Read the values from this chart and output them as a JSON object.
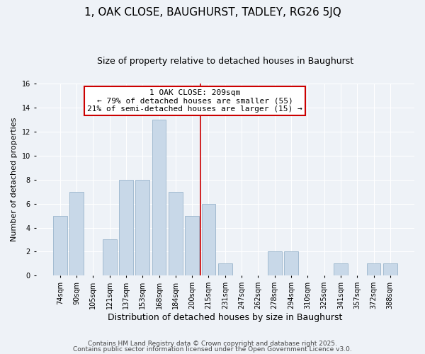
{
  "title": "1, OAK CLOSE, BAUGHURST, TADLEY, RG26 5JQ",
  "subtitle": "Size of property relative to detached houses in Baughurst",
  "xlabel": "Distribution of detached houses by size in Baughurst",
  "ylabel": "Number of detached properties",
  "bar_labels": [
    "74sqm",
    "90sqm",
    "105sqm",
    "121sqm",
    "137sqm",
    "153sqm",
    "168sqm",
    "184sqm",
    "200sqm",
    "215sqm",
    "231sqm",
    "247sqm",
    "262sqm",
    "278sqm",
    "294sqm",
    "310sqm",
    "325sqm",
    "341sqm",
    "357sqm",
    "372sqm",
    "388sqm"
  ],
  "bar_values": [
    5,
    7,
    0,
    3,
    8,
    8,
    13,
    7,
    5,
    6,
    1,
    0,
    0,
    2,
    2,
    0,
    0,
    1,
    0,
    1,
    1
  ],
  "bar_color": "#c8d8e8",
  "bar_edge_color": "#9ab5cc",
  "ylim": [
    0,
    16
  ],
  "yticks": [
    0,
    2,
    4,
    6,
    8,
    10,
    12,
    14,
    16
  ],
  "vline_x_idx": 9,
  "annotation_title": "1 OAK CLOSE: 209sqm",
  "annotation_line1": "← 79% of detached houses are smaller (55)",
  "annotation_line2": "21% of semi-detached houses are larger (15) →",
  "annotation_box_facecolor": "#ffffff",
  "annotation_border_color": "#cc0000",
  "vline_color": "#cc0000",
  "footer_line1": "Contains HM Land Registry data © Crown copyright and database right 2025.",
  "footer_line2": "Contains public sector information licensed under the Open Government Licence v3.0.",
  "bg_color": "#eef2f7",
  "plot_bg_color": "#eef2f7",
  "grid_color": "#ffffff",
  "title_fontsize": 11,
  "subtitle_fontsize": 9,
  "xlabel_fontsize": 9,
  "ylabel_fontsize": 8,
  "tick_fontsize": 7,
  "annot_fontsize": 8,
  "footer_fontsize": 6.5
}
